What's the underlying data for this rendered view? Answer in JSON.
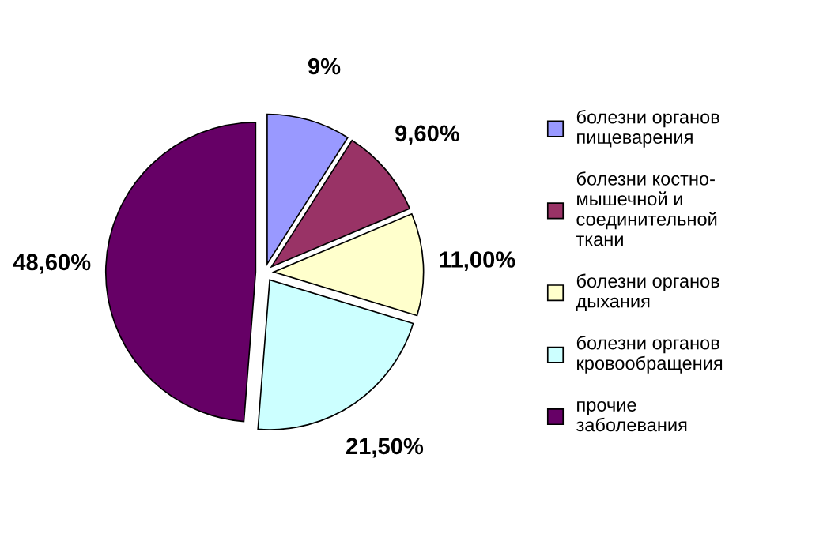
{
  "chart_data": {
    "type": "pie",
    "categories": [
      "болезни органов\nпищеварения",
      "болезни костно-\nмышечной и\nсоединительной\nткани",
      "болезни органов\nдыхания",
      "болезни органов\nкровообращения",
      "прочие\nзаболевания"
    ],
    "values": [
      9,
      9.6,
      11,
      21.5,
      48.6
    ],
    "value_labels": [
      "9%",
      "9,60%",
      "11,00%",
      "21,50%",
      "48,60%"
    ],
    "colors": [
      "#9999ff",
      "#993366",
      "#ffffcc",
      "#ccffff",
      "#660066"
    ],
    "legend": "right"
  }
}
